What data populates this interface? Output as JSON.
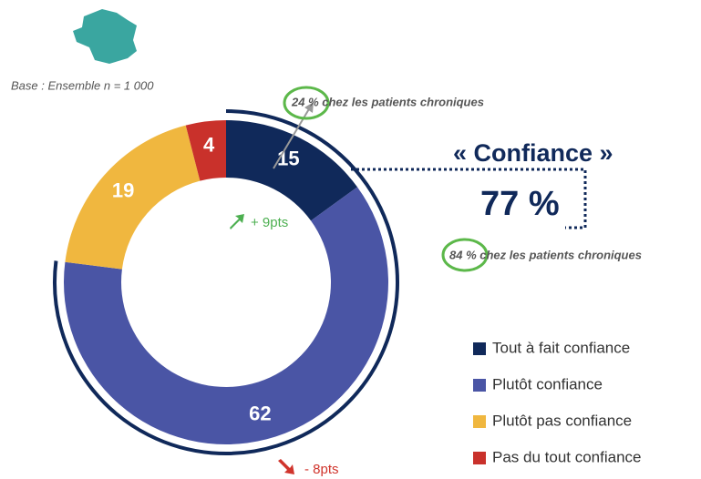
{
  "chart_data": {
    "type": "pie",
    "subtitle": "Base : Ensemble n = 1 000",
    "categories": [
      "Tout à fait confiance",
      "Plutôt confiance",
      "Plutôt pas confiance",
      "Pas du tout confiance"
    ],
    "values": [
      15,
      62,
      19,
      4
    ],
    "colors": [
      "#10295a",
      "#4a55a5",
      "#f0b73f",
      "#c9312b"
    ],
    "donut": true,
    "annotations": {
      "chronic_top": "24 % chez les patients chroniques",
      "group_label": "« Confiance »",
      "group_total": "77 %",
      "chronic_bottom": "84 % chez les patients chroniques",
      "up": "+ 9pts",
      "down": "- 8pts"
    }
  }
}
